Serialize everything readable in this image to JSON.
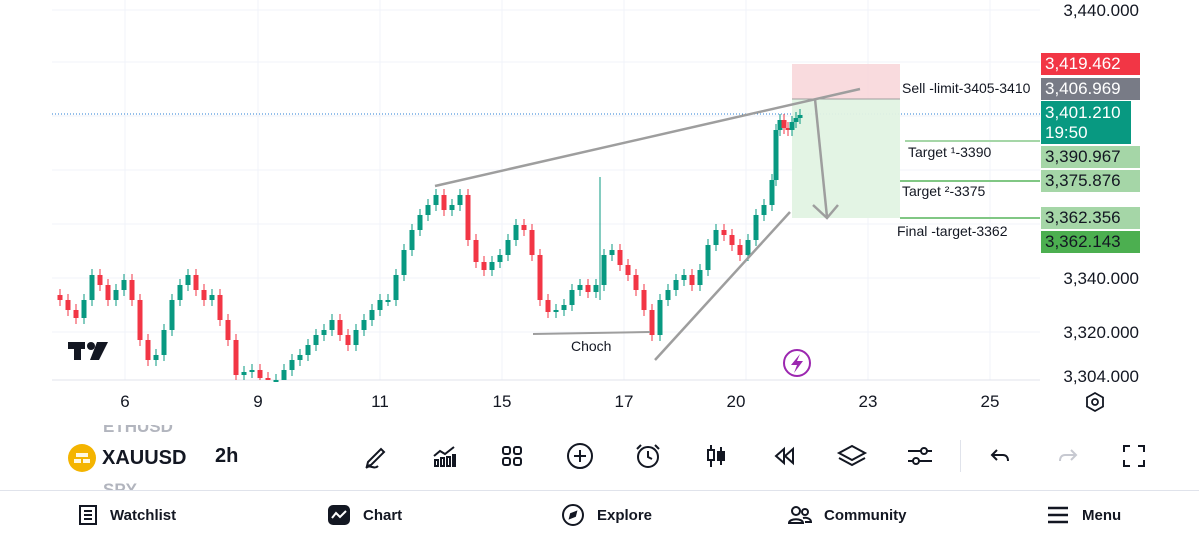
{
  "chart": {
    "price_axis": [
      "3,440.000",
      "3,340.000",
      "3,320.000",
      "3,304.000"
    ],
    "date_axis": [
      "6",
      "9",
      "11",
      "15",
      "17",
      "20",
      "23",
      "25"
    ],
    "price_tags": [
      {
        "value": "3,419.462",
        "bg": "#f23645",
        "fg": "#ffffff"
      },
      {
        "value": "3,406.969",
        "bg": "#787b86",
        "fg": "#ffffff"
      },
      {
        "value": "3,401.210",
        "sub": "19:50",
        "bg": "#089981",
        "fg": "#ffffff"
      },
      {
        "value": "3,390.967",
        "bg": "#a5d6a7",
        "fg": "#131722"
      },
      {
        "value": "3,375.876",
        "bg": "#a5d6a7",
        "fg": "#131722"
      },
      {
        "value": "3,362.356",
        "bg": "#a5d6a7",
        "fg": "#131722"
      },
      {
        "value": "3,362.143",
        "bg": "#4caf50",
        "fg": "#131722"
      }
    ],
    "annotations": {
      "sell": "Sell -limit-3405-3410",
      "target1": "Target ¹-3390",
      "target2": "Target ²-3375",
      "final": "Final -target-3362",
      "choch": "Choch"
    },
    "colors": {
      "up": "#089981",
      "down": "#f23645",
      "trend": "#9e9e9e"
    },
    "logo_text": "TV"
  },
  "toolbar": {
    "symbol": "XAUUSD",
    "symbol_above": "ETHUSD",
    "symbol_below": "SPY",
    "interval": "2h",
    "buttons": [
      "pencil-icon",
      "indicators-icon",
      "layout-grid-icon",
      "add-icon",
      "alert-clock-icon",
      "candle-type-icon",
      "replay-icon",
      "layers-icon",
      "settings-sliders-icon",
      "undo-icon",
      "redo-icon",
      "fullscreen-icon"
    ]
  },
  "nav": {
    "watchlist": "Watchlist",
    "chart": "Chart",
    "explore": "Explore",
    "community": "Community",
    "menu": "Menu"
  }
}
